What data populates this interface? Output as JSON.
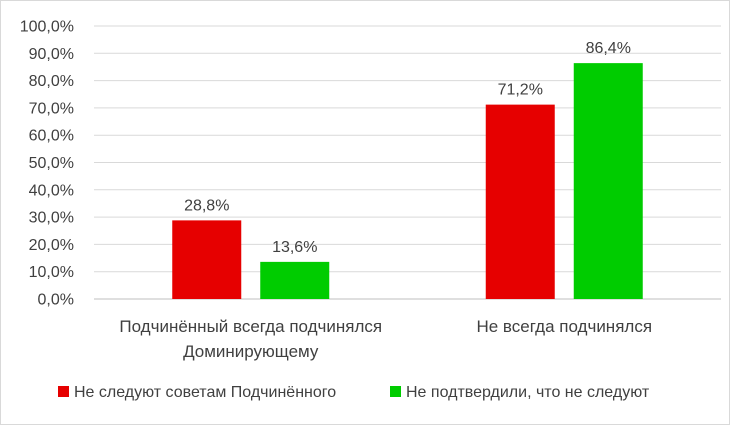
{
  "chart_data": {
    "type": "bar",
    "categories": [
      [
        "Подчинённый всегда подчинялся",
        "Доминирующему"
      ],
      [
        "Не всегда подчинялся"
      ]
    ],
    "series": [
      {
        "name": "Не следуют советам Подчинённого",
        "color": "#e60000",
        "values": [
          28.8,
          71.2
        ],
        "data_labels": [
          "28,8%",
          "71,2%"
        ]
      },
      {
        "name": "Не подтвердили, что не следуют",
        "color": "#00cc00",
        "values": [
          13.6,
          86.4
        ],
        "data_labels": [
          "13,6%",
          "86,4%"
        ]
      }
    ],
    "ylim": [
      0,
      100
    ],
    "y_ticks": [
      0,
      10,
      20,
      30,
      40,
      50,
      60,
      70,
      80,
      90,
      100
    ],
    "y_tick_labels": [
      "0,0%",
      "10,0%",
      "20,0%",
      "30,0%",
      "40,0%",
      "50,0%",
      "60,0%",
      "70,0%",
      "80,0%",
      "90,0%",
      "100,0%"
    ],
    "grid": "horizontal",
    "legend_position": "bottom"
  }
}
